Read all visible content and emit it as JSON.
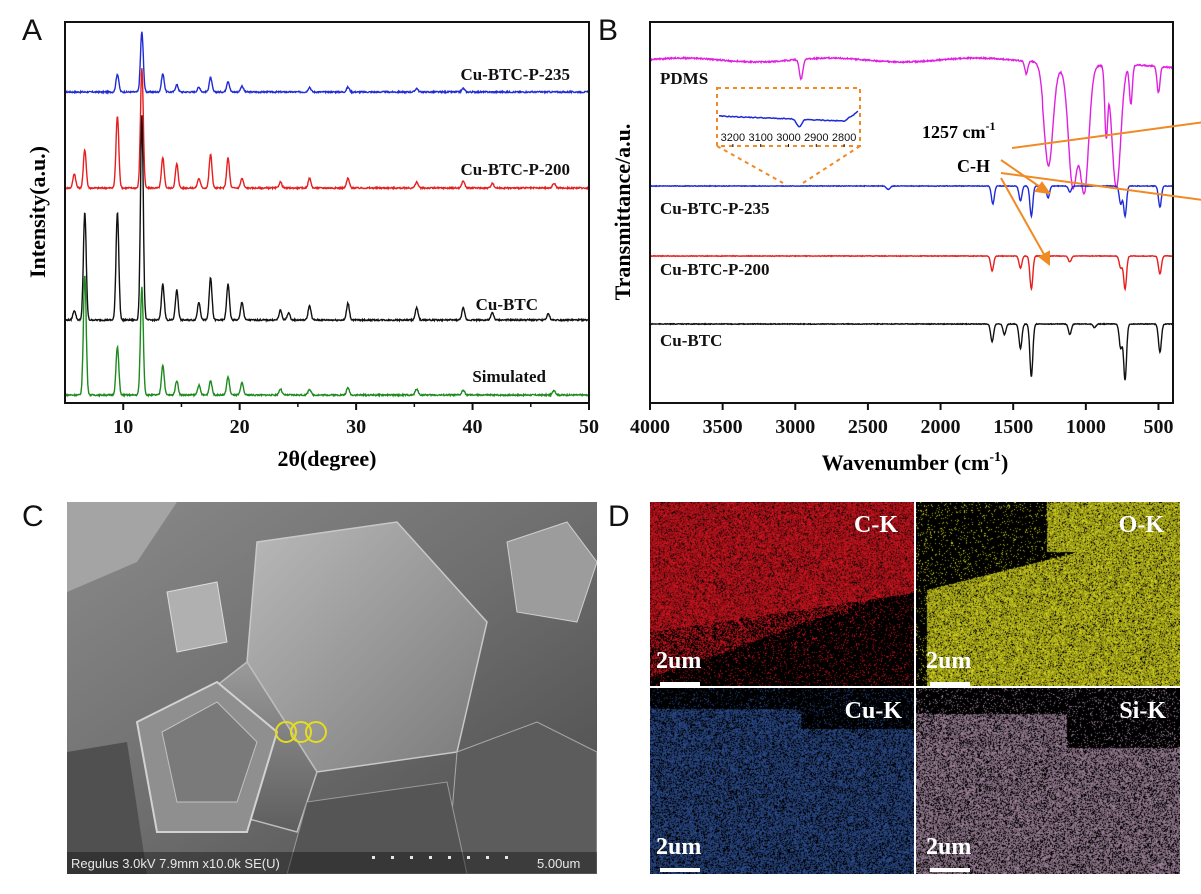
{
  "panels": {
    "A": "A",
    "B": "B",
    "C": "C",
    "D": "D"
  },
  "chart_data": [
    {
      "type": "line",
      "panel": "A",
      "xlabel": "2θ(degree)",
      "ylabel": "Intensity(a.u.)",
      "xlim": [
        5,
        50
      ],
      "xticks": [
        10,
        20,
        30,
        40,
        50
      ],
      "series": [
        {
          "name": "Cu-BTC-P-235",
          "color": "#1f2bd6",
          "offset": 3,
          "peaks": [
            [
              9.5,
              0.15
            ],
            [
              11.6,
              0.5
            ],
            [
              13.4,
              0.15
            ],
            [
              14.6,
              0.06
            ],
            [
              16.5,
              0.04
            ],
            [
              17.5,
              0.12
            ],
            [
              19.0,
              0.09
            ],
            [
              20.2,
              0.05
            ],
            [
              26.0,
              0.04
            ],
            [
              29.3,
              0.04
            ],
            [
              35.2,
              0.03
            ],
            [
              39.2,
              0.03
            ]
          ]
        },
        {
          "name": "Cu-BTC-P-200",
          "color": "#e61e1e",
          "offset": 2,
          "peaks": [
            [
              5.8,
              0.12
            ],
            [
              6.7,
              0.32
            ],
            [
              9.5,
              0.6
            ],
            [
              11.6,
              1.0
            ],
            [
              13.4,
              0.25
            ],
            [
              14.6,
              0.2
            ],
            [
              16.5,
              0.08
            ],
            [
              17.5,
              0.28
            ],
            [
              19.0,
              0.25
            ],
            [
              20.2,
              0.08
            ],
            [
              23.5,
              0.05
            ],
            [
              26.0,
              0.08
            ],
            [
              29.3,
              0.08
            ],
            [
              35.2,
              0.05
            ],
            [
              39.2,
              0.06
            ],
            [
              41.7,
              0.04
            ],
            [
              47.0,
              0.04
            ]
          ]
        },
        {
          "name": "Cu-BTC",
          "color": "#111111",
          "offset": 1,
          "peaks": [
            [
              5.8,
              0.08
            ],
            [
              6.7,
              0.9
            ],
            [
              9.5,
              0.9
            ],
            [
              11.6,
              1.7
            ],
            [
              13.4,
              0.3
            ],
            [
              14.6,
              0.25
            ],
            [
              16.5,
              0.15
            ],
            [
              17.5,
              0.35
            ],
            [
              19.0,
              0.3
            ],
            [
              20.2,
              0.15
            ],
            [
              23.5,
              0.08
            ],
            [
              24.2,
              0.06
            ],
            [
              26.0,
              0.12
            ],
            [
              29.3,
              0.14
            ],
            [
              35.2,
              0.1
            ],
            [
              39.2,
              0.1
            ],
            [
              41.7,
              0.06
            ],
            [
              46.5,
              0.05
            ]
          ]
        },
        {
          "name": "Simulated",
          "color": "#1e8a1e",
          "offset": 0,
          "peaks": [
            [
              6.7,
              1.0
            ],
            [
              9.5,
              0.4
            ],
            [
              11.6,
              0.9
            ],
            [
              13.4,
              0.25
            ],
            [
              14.6,
              0.12
            ],
            [
              16.5,
              0.08
            ],
            [
              17.5,
              0.12
            ],
            [
              19.0,
              0.15
            ],
            [
              20.2,
              0.1
            ],
            [
              23.5,
              0.05
            ],
            [
              26.0,
              0.05
            ],
            [
              29.3,
              0.06
            ],
            [
              35.2,
              0.05
            ],
            [
              39.2,
              0.04
            ],
            [
              47.0,
              0.04
            ]
          ]
        }
      ]
    },
    {
      "type": "line",
      "panel": "B",
      "xlabel": "Wavenumber (cm⁻¹)",
      "xlabel_main": "Wavenumber (cm",
      "xlabel_sup": "-1",
      "xlabel_tail": ")",
      "ylabel": "Transmittance/a.u.",
      "xlim": [
        4000,
        400
      ],
      "xticks": [
        4000,
        3500,
        3000,
        2500,
        2000,
        1500,
        1000,
        500
      ],
      "series": [
        {
          "name": "PDMS",
          "color": "#e020e0",
          "offset": 3,
          "dips": [
            [
              2960,
              0.15
            ],
            [
              1410,
              0.1
            ],
            [
              1257,
              0.75
            ],
            [
              1090,
              0.9
            ],
            [
              1010,
              0.95
            ],
            [
              860,
              0.5
            ],
            [
              790,
              0.95
            ],
            [
              690,
              0.3
            ],
            [
              500,
              0.2
            ]
          ]
        },
        {
          "name": "Cu-BTC-P-235",
          "color": "#1f2bd6",
          "offset": 2,
          "dips": [
            [
              2360,
              0.06
            ],
            [
              1640,
              0.3
            ],
            [
              1450,
              0.25
            ],
            [
              1375,
              0.5
            ],
            [
              1260,
              0.2
            ],
            [
              1110,
              0.1
            ],
            [
              760,
              0.3
            ],
            [
              730,
              0.5
            ],
            [
              490,
              0.35
            ]
          ]
        },
        {
          "name": "Cu-BTC-P-200",
          "color": "#e61e1e",
          "offset": 1,
          "dips": [
            [
              1645,
              0.25
            ],
            [
              1450,
              0.2
            ],
            [
              1375,
              0.55
            ],
            [
              1110,
              0.1
            ],
            [
              760,
              0.2
            ],
            [
              730,
              0.55
            ],
            [
              490,
              0.3
            ]
          ]
        },
        {
          "name": "Cu-BTC",
          "color": "#111111",
          "offset": 0,
          "dips": [
            [
              1645,
              0.25
            ],
            [
              1560,
              0.15
            ],
            [
              1450,
              0.35
            ],
            [
              1375,
              0.75
            ],
            [
              1110,
              0.15
            ],
            [
              940,
              0.05
            ],
            [
              760,
              0.35
            ],
            [
              730,
              0.8
            ],
            [
              490,
              0.4
            ]
          ]
        }
      ],
      "annotations": {
        "peak_1257": "1257 cm",
        "peak_1257_sup": "-1",
        "ch": "C-H"
      },
      "inset": {
        "xlim": [
          3250,
          2750
        ],
        "xticks": [
          3200,
          3100,
          3000,
          2900,
          2800
        ],
        "color": "#1f2bd6"
      }
    }
  ],
  "sem": {
    "footer": "Regulus 3.0kV 7.9mm x10.0k SE(U)",
    "scale": "5.00um"
  },
  "eds": {
    "maps": [
      {
        "label": "C-K",
        "color": "#c8141e"
      },
      {
        "label": "O-K",
        "color": "#c8c81e"
      },
      {
        "label": "Cu-K",
        "color": "#2a4a8a"
      },
      {
        "label": "Si-K",
        "color": "#9a7f96"
      }
    ],
    "scale": "2um"
  }
}
